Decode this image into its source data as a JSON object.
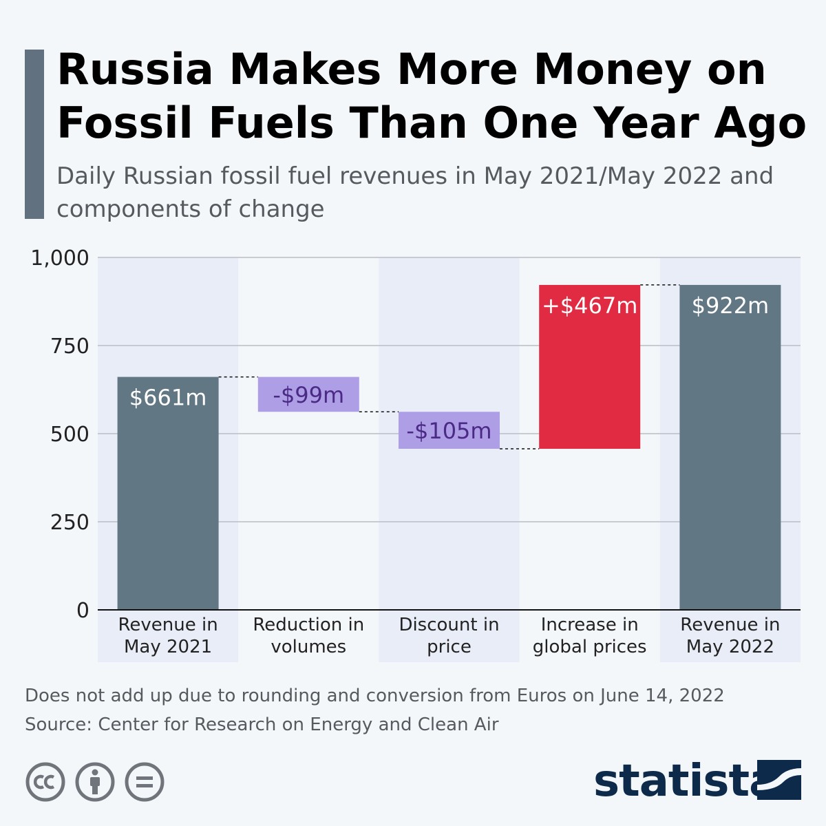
{
  "header": {
    "title": "Russia Makes More Money on Fossil Fuels Than One Year Ago",
    "subtitle": "Daily Russian fossil fuel revenues in May 2021/May 2022 and components of change"
  },
  "colors": {
    "accent": "#61717f",
    "total_bar": "#627784",
    "decrease_bar": "#ae9ee6",
    "decrease_label": "#4b2a85",
    "increase_bar": "#e02b42",
    "column_band": "#e8edf7",
    "gridline": "#b9bec4",
    "logo": "#0d2a4a"
  },
  "chart_data": {
    "type": "waterfall",
    "categories": [
      "Revenue in May 2021",
      "Reduction in volumes",
      "Discount in price",
      "Increase in global prices",
      "Revenue in May 2022"
    ],
    "category_lines": [
      [
        "Revenue in",
        "May 2021"
      ],
      [
        "Reduction in",
        "volumes"
      ],
      [
        "Discount in",
        "price"
      ],
      [
        "Increase in",
        "global prices"
      ],
      [
        "Revenue in",
        "May 2022"
      ]
    ],
    "bars": [
      {
        "kind": "total",
        "start": 0,
        "end": 661,
        "label": "$661m"
      },
      {
        "kind": "decrease",
        "start": 661,
        "end": 562,
        "label": "-$99m"
      },
      {
        "kind": "decrease",
        "start": 562,
        "end": 457,
        "label": "-$105m"
      },
      {
        "kind": "increase",
        "start": 457,
        "end": 922,
        "label": "+$467m"
      },
      {
        "kind": "total",
        "start": 0,
        "end": 922,
        "label": "$922m"
      }
    ],
    "ylim": [
      0,
      1000
    ],
    "yticks": [
      0,
      250,
      500,
      750,
      1000
    ],
    "ytick_labels": [
      "0",
      "250",
      "500",
      "750",
      "1,000"
    ],
    "grid": true
  },
  "footer": {
    "note": "Does not add up due to rounding and conversion from Euros on June 14, 2022",
    "source": "Source: Center for Research on Energy and Clean Air",
    "logo_text": "statista",
    "license_icons": [
      "cc-icon",
      "attribution-icon",
      "no-derivatives-icon"
    ]
  }
}
